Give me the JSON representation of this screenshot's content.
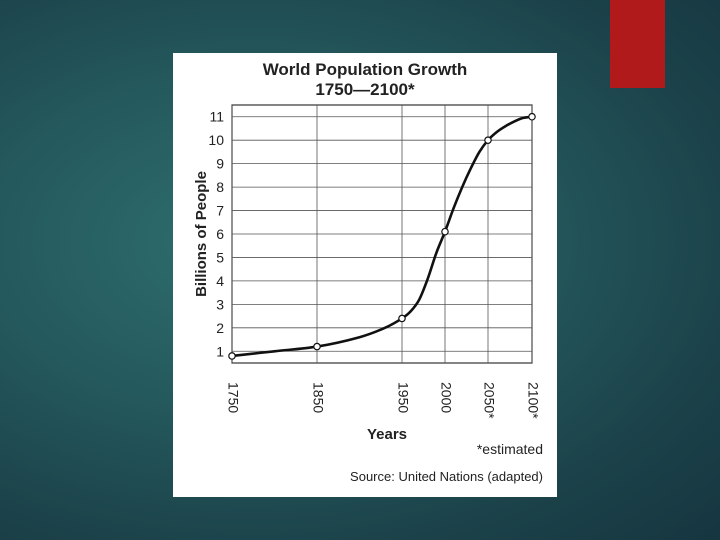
{
  "slide": {
    "accent_color": "#b01a1a"
  },
  "chart_data": {
    "type": "line",
    "title": "World Population Growth",
    "subtitle": "1750—2100*",
    "xlabel": "Years",
    "ylabel": "Billions of People",
    "x_ticks": [
      "1750",
      "1850",
      "1950",
      "2000",
      "2050*",
      "2100*"
    ],
    "y_ticks": [
      1,
      2,
      3,
      4,
      5,
      6,
      7,
      8,
      9,
      10,
      11
    ],
    "ylim": [
      0.5,
      11.5
    ],
    "grid": true,
    "series": [
      {
        "x": [
          1750,
          1800,
          1850,
          1900,
          1930,
          1950,
          1960,
          1970,
          1980,
          1990,
          2000,
          2010,
          2020,
          2030,
          2040,
          2050,
          2060,
          2070,
          2080,
          2090,
          2100
        ],
        "y": [
          0.8,
          1.0,
          1.2,
          1.6,
          2.0,
          2.4,
          2.7,
          3.2,
          4.1,
          5.2,
          6.1,
          7.1,
          8.0,
          8.8,
          9.5,
          10.0,
          10.35,
          10.6,
          10.8,
          10.95,
          11.0
        ]
      }
    ],
    "marked_points": [
      {
        "x": 1750,
        "y": 0.8
      },
      {
        "x": 1850,
        "y": 1.2
      },
      {
        "x": 1950,
        "y": 2.4
      },
      {
        "x": 2000,
        "y": 6.1
      },
      {
        "x": 2050,
        "y": 10.0
      },
      {
        "x": 2100,
        "y": 11.0
      }
    ],
    "footnote": "*estimated",
    "source": "Source: United Nations (adapted)"
  }
}
